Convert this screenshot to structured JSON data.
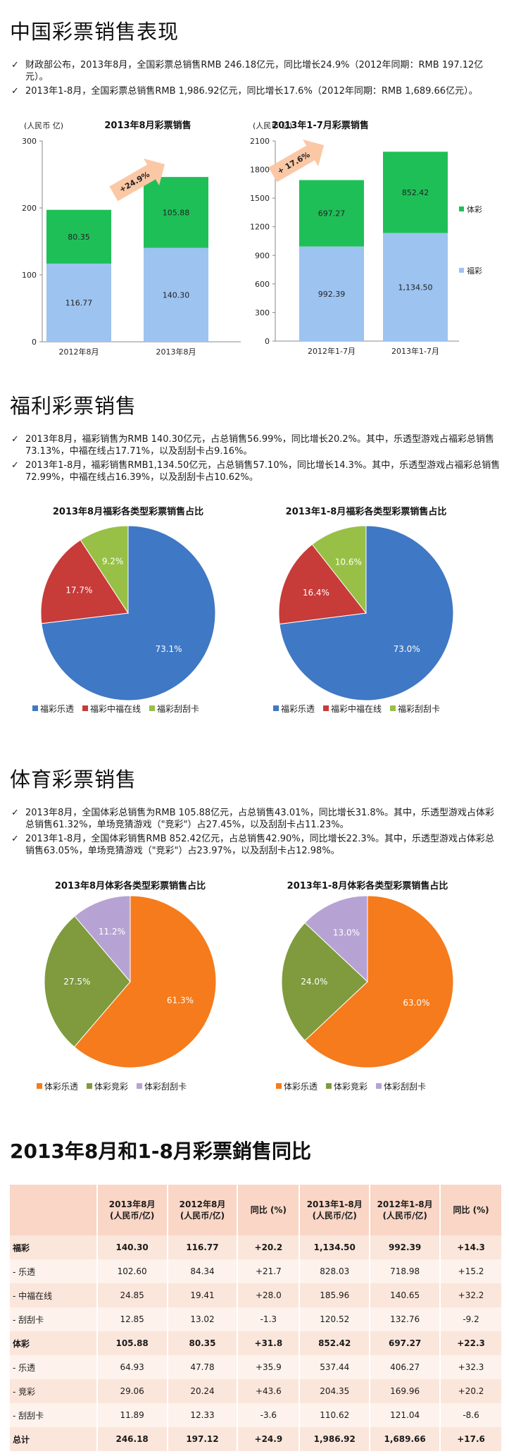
{
  "overview": {
    "title": "中国彩票销售表现",
    "bullets": [
      "财政部公布，2013年8月，全国彩票总销售RMB 246.18亿元，同比增长24.9%（2012年同期：RMB 197.12亿元）。",
      "2013年1-8月，全国彩票总销售RMB 1,986.92亿元，同比增长17.6%（2012年同期：RMB 1,689.66亿元）。"
    ]
  },
  "welfare": {
    "title": "福利彩票销售",
    "bullets": [
      "2013年8月，福彩销售为RMB 140.30亿元，占总销售56.99%，同比增长20.2%。其中，乐透型游戏占福彩总销售73.13%，中福在线占17.71%，以及刮刮卡占9.16%。",
      "2013年1-8月，福彩销售RMB1,134.50亿元，占总销售57.10%，同比增长14.3%。其中，乐透型游戏占福彩总销售72.99%，中福在线占16.39%，以及刮刮卡占10.62%。"
    ]
  },
  "sports": {
    "title": "体育彩票销售",
    "bullets": [
      "2013年8月，全国体彩总销售为RMB 105.88亿元，占总销售43.01%，同比增长31.8%。其中，乐透型游戏占体彩总销售61.32%，单场竞猜游戏（\"竞彩\"）占27.45%，以及刮刮卡占11.23%。",
      "2013年1-8月，全国体彩销售RMB 852.42亿元，占总销售42.90%，同比增长22.3%。其中，乐透型游戏占体彩总销售63.05%，单场竞猜游戏（\"竞彩\"）占23.97%，以及刮刮卡占12.98%。"
    ]
  },
  "colors": {
    "welfare": "#9dc3f0",
    "sports": "#1fbf58",
    "pie_blue": "#3f78c4",
    "pie_red": "#c73b39",
    "pie_green": "#98c046",
    "pie_orange": "#f57b1c",
    "pie_olive": "#7f9b3e",
    "pie_lavender": "#b7a3d3",
    "arrow": "#fbc8a6"
  },
  "chart_data": [
    {
      "type": "bar",
      "stacked": true,
      "title": "2013年8月彩票销售",
      "ylabel": "(人民币 亿)",
      "categories": [
        "2012年8月",
        "2013年8月"
      ],
      "series": [
        {
          "name": "福彩",
          "values": [
            116.77,
            140.3
          ]
        },
        {
          "name": "体彩",
          "values": [
            80.35,
            105.88
          ]
        }
      ],
      "ylim": [
        0,
        300
      ],
      "yticks": [
        0,
        100,
        200,
        300
      ],
      "annotation": "+24.9%"
    },
    {
      "type": "bar",
      "stacked": true,
      "title": "2013年1-7月彩票销售",
      "ylabel": "(人民币 亿)",
      "categories": [
        "2012年1-7月",
        "2013年1-7月"
      ],
      "series": [
        {
          "name": "福彩",
          "values": [
            992.39,
            1134.5
          ],
          "labels": [
            "992.39",
            "1,134.50"
          ]
        },
        {
          "name": "体彩",
          "values": [
            697.27,
            852.42
          ],
          "labels": [
            "697.27",
            "852.42"
          ]
        }
      ],
      "ylim": [
        0,
        2100
      ],
      "yticks": [
        0,
        300,
        600,
        900,
        1200,
        1500,
        1800,
        2100
      ],
      "annotation": "+ 17.6%",
      "legend": [
        "体彩",
        "福彩"
      ]
    },
    {
      "type": "pie",
      "title": "2013年8月福彩各类型彩票销售占比",
      "labels": [
        "福彩乐透",
        "福彩中福在线",
        "福彩刮刮卡"
      ],
      "values": [
        73.1,
        17.7,
        9.2
      ]
    },
    {
      "type": "pie",
      "title": "2013年1-8月福彩各类型彩票销售占比",
      "labels": [
        "福彩乐透",
        "福彩中福在线",
        "福彩刮刮卡"
      ],
      "values": [
        73.0,
        16.4,
        10.6
      ]
    },
    {
      "type": "pie",
      "title": "2013年8月体彩各类型彩票销售占比",
      "labels": [
        "体彩乐透",
        "体彩竞彩",
        "体彩刮刮卡"
      ],
      "values": [
        61.3,
        27.5,
        11.2
      ]
    },
    {
      "type": "pie",
      "title": "2013年1-8月体彩各类型彩票销售占比",
      "labels": [
        "体彩乐透",
        "体彩竞彩",
        "体彩刮刮卡"
      ],
      "values": [
        63.0,
        24.0,
        13.0
      ]
    },
    {
      "type": "table",
      "title": "2013年8月和1-8月彩票銷售同比",
      "headers": [
        "",
        "2013年8月\n(人民币/亿)",
        "2012年8月\n(人民币/亿)",
        "同比 (%)",
        "2013年1-8月\n(人民币/亿)",
        "2012年1-8月\n(人民币/亿)",
        "同比 (%)"
      ],
      "rows": [
        {
          "cells": [
            "福彩",
            "140.30",
            "116.77",
            "+20.2",
            "1,134.50",
            "992.39",
            "+14.3"
          ],
          "bold": true
        },
        {
          "cells": [
            "- 乐透",
            "102.60",
            "84.34",
            "+21.7",
            "828.03",
            "718.98",
            "+15.2"
          ],
          "bold": false
        },
        {
          "cells": [
            "- 中福在线",
            "24.85",
            "19.41",
            "+28.0",
            "185.96",
            "140.65",
            "+32.2"
          ],
          "bold": false
        },
        {
          "cells": [
            "- 刮刮卡",
            "12.85",
            "13.02",
            "-1.3",
            "120.52",
            "132.76",
            "-9.2"
          ],
          "bold": false
        },
        {
          "cells": [
            "体彩",
            "105.88",
            "80.35",
            "+31.8",
            "852.42",
            "697.27",
            "+22.3"
          ],
          "bold": true
        },
        {
          "cells": [
            "- 乐透",
            "64.93",
            "47.78",
            "+35.9",
            "537.44",
            "406.27",
            "+32.3"
          ],
          "bold": false
        },
        {
          "cells": [
            "- 竞彩",
            "29.06",
            "20.24",
            "+43.6",
            "204.35",
            "169.96",
            "+20.2"
          ],
          "bold": false
        },
        {
          "cells": [
            "- 刮刮卡",
            "11.89",
            "12.33",
            "-3.6",
            "110.62",
            "121.04",
            "-8.6"
          ],
          "bold": false
        },
        {
          "cells": [
            "总计",
            "246.18",
            "197.12",
            "+24.9",
            "1,986.92",
            "1,689.66",
            "+17.6"
          ],
          "bold": true
        }
      ]
    }
  ]
}
